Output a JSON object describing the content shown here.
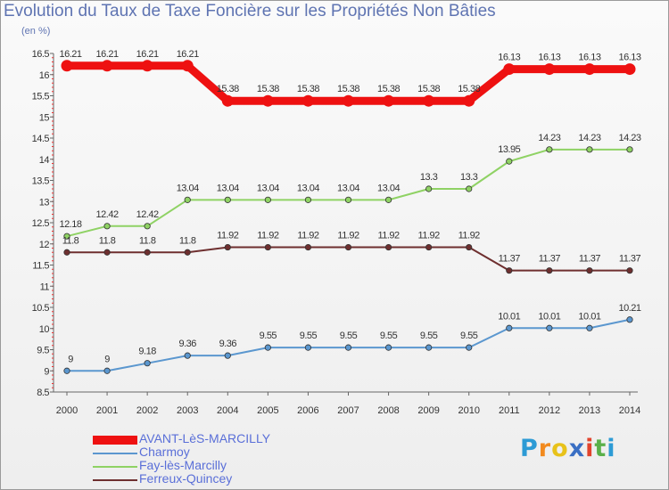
{
  "chart_data": {
    "type": "line",
    "title": "Evolution du Taux de Taxe Foncière sur les Propriétés Non Bâties",
    "unit_label": "(en %)",
    "xlabel": "",
    "ylabel": "",
    "x": [
      "2000",
      "2001",
      "2002",
      "2003",
      "2004",
      "2005",
      "2006",
      "2007",
      "2008",
      "2009",
      "2010",
      "2011",
      "2012",
      "2013",
      "2014"
    ],
    "ylim": [
      8.5,
      16.5
    ],
    "y_ticks": [
      8.5,
      9,
      9.5,
      10,
      10.5,
      11,
      11.5,
      12,
      12.5,
      13,
      13.5,
      14,
      14.5,
      15,
      15.5,
      16,
      16.5
    ],
    "grid": false,
    "legend_position": "bottom-left",
    "series": [
      {
        "name": "AVANT-LèS-MARCILLY",
        "color": "#ee1111",
        "values": [
          16.21,
          16.21,
          16.21,
          16.21,
          15.38,
          15.38,
          15.38,
          15.38,
          15.38,
          15.38,
          15.38,
          16.13,
          16.13,
          16.13,
          16.13
        ],
        "labels": [
          "16.21",
          "16.21",
          "16.21",
          "16.21",
          "15.38",
          "15.38",
          "15.38",
          "15.38",
          "15.38",
          "15.38",
          "15.38",
          "16.13",
          "16.13",
          "16.13",
          "16.13"
        ]
      },
      {
        "name": "Charmoy",
        "color": "#5b97cf",
        "values": [
          9,
          9,
          9.18,
          9.36,
          9.36,
          9.55,
          9.55,
          9.55,
          9.55,
          9.55,
          9.55,
          10.01,
          10.01,
          10.01,
          10.21
        ],
        "labels": [
          "9",
          "9",
          "9.18",
          "9.36",
          "9.36",
          "9.55",
          "9.55",
          "9.55",
          "9.55",
          "9.55",
          "9.55",
          "10.01",
          "10.01",
          "10.01",
          "10.21"
        ]
      },
      {
        "name": "Fay-lès-Marcilly",
        "color": "#8fd264",
        "values": [
          12.18,
          12.42,
          12.42,
          13.04,
          13.04,
          13.04,
          13.04,
          13.04,
          13.04,
          13.3,
          13.3,
          13.95,
          14.23,
          14.23,
          14.23
        ],
        "labels": [
          "12.18",
          "12.42",
          "12.42",
          "13.04",
          "13.04",
          "13.04",
          "13.04",
          "13.04",
          "13.04",
          "13.3",
          "13.3",
          "13.95",
          "14.23",
          "14.23",
          "14.23"
        ]
      },
      {
        "name": "Ferreux-Quincey",
        "color": "#6e2f2f",
        "values": [
          11.8,
          11.8,
          11.8,
          11.8,
          11.92,
          11.92,
          11.92,
          11.92,
          11.92,
          11.92,
          11.92,
          11.37,
          11.37,
          11.37,
          11.37
        ],
        "labels": [
          "11.8",
          "11.8",
          "11.8",
          "11.8",
          "11.92",
          "11.92",
          "11.92",
          "11.92",
          "11.92",
          "11.92",
          "11.92",
          "11.37",
          "11.37",
          "11.37",
          "11.37"
        ]
      }
    ]
  },
  "logo": {
    "letters": [
      "P",
      "r",
      "o",
      "x",
      "i",
      "t",
      "i"
    ],
    "colors": [
      "#2d9bd5",
      "#f28a1e",
      "#e8c21a",
      "#3a6fc4",
      "#e2442d",
      "#5bb04a",
      "#2d9bd5"
    ]
  }
}
